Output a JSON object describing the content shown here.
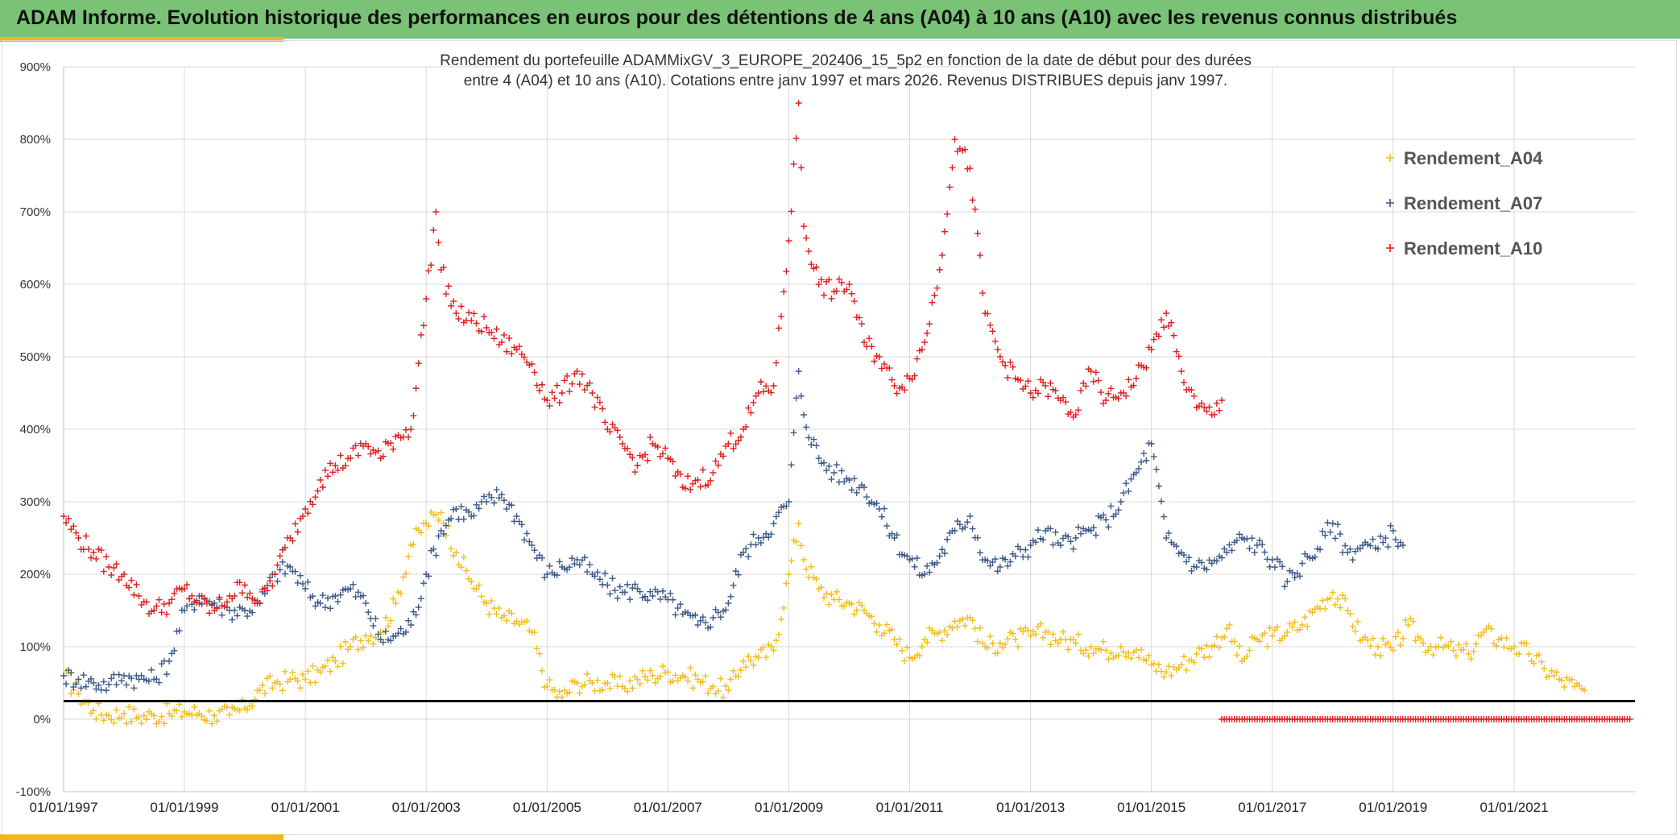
{
  "header": {
    "title": "ADAM Informe. Evolution historique des performances en euros pour des détentions de 4 ans (A04) à 10 ans (A10) avec les revenus connus distribués"
  },
  "colors": {
    "header_bg": "#7ac276",
    "accent": "#f2b61b",
    "A04": "#f2be1c",
    "A07": "#3d5a8a",
    "A10": "#e02020",
    "reference_line": "#000000"
  },
  "chart_data": {
    "type": "scatter",
    "title_lines": [
      "Rendement du portefeuille ADAMMixGV_3_EUROPE_202406_15_5p2  en fonction de la date de début pour des durées",
      "entre 4 (A04) et 10 ans (A10). Cotations entre janv 1997 et mars 2026. Revenus DISTRIBUES depuis janv 1997."
    ],
    "xlabel": "",
    "ylabel": "",
    "x_ticks": [
      "01/01/1997",
      "01/01/1999",
      "01/01/2001",
      "01/01/2003",
      "01/01/2005",
      "01/01/2007",
      "01/01/2009",
      "01/01/2011",
      "01/01/2013",
      "01/01/2015",
      "01/01/2017",
      "01/01/2019",
      "01/01/2021"
    ],
    "xlim": [
      "1997-01-01",
      "2023-01-01"
    ],
    "ylim": [
      -100,
      900
    ],
    "y_ticks": [
      "-100%",
      "0%",
      "100%",
      "200%",
      "300%",
      "400%",
      "500%",
      "600%",
      "700%",
      "800%",
      "900%"
    ],
    "y_tick_values": [
      -100,
      0,
      100,
      200,
      300,
      400,
      500,
      600,
      700,
      800,
      900
    ],
    "grid": true,
    "legend_position": "top-right",
    "marker": "+",
    "reference_line_y": 25,
    "series": [
      {
        "name": "Rendement_A04",
        "x": [
          "1997-01-01",
          "1997-04-01",
          "1997-07-01",
          "1997-10-01",
          "1998-01-01",
          "1998-04-01",
          "1998-07-01",
          "1998-10-01",
          "1999-01-01",
          "1999-04-01",
          "1999-07-01",
          "1999-10-01",
          "2000-01-01",
          "2000-04-01",
          "2000-07-01",
          "2000-10-01",
          "2001-01-01",
          "2001-04-01",
          "2001-07-01",
          "2001-10-01",
          "2002-01-01",
          "2002-04-01",
          "2002-07-01",
          "2002-10-01",
          "2003-01-01",
          "2003-04-01",
          "2003-07-01",
          "2003-10-01",
          "2004-01-01",
          "2004-04-01",
          "2004-07-01",
          "2004-10-01",
          "2005-01-01",
          "2005-04-01",
          "2005-07-01",
          "2005-10-01",
          "2006-01-01",
          "2006-04-01",
          "2006-07-01",
          "2006-10-01",
          "2007-01-01",
          "2007-04-01",
          "2007-07-01",
          "2007-10-01",
          "2008-01-01",
          "2008-04-01",
          "2008-07-01",
          "2008-10-01",
          "2009-01-01",
          "2009-03-01",
          "2009-04-01",
          "2009-07-01",
          "2009-10-01",
          "2010-01-01",
          "2010-04-01",
          "2010-07-01",
          "2010-10-01",
          "2011-01-01",
          "2011-04-01",
          "2011-07-01",
          "2011-10-01",
          "2012-01-01",
          "2012-04-01",
          "2012-07-01",
          "2012-10-01",
          "2013-01-01",
          "2013-04-01",
          "2013-07-01",
          "2013-10-01",
          "2014-01-01",
          "2014-04-01",
          "2014-07-01",
          "2014-10-01",
          "2015-01-01",
          "2015-04-01",
          "2015-07-01",
          "2015-10-01",
          "2016-01-01",
          "2016-04-01",
          "2016-07-01",
          "2016-10-01",
          "2017-01-01",
          "2017-04-01",
          "2017-07-01",
          "2017-10-01",
          "2018-01-01",
          "2018-04-01",
          "2018-07-01",
          "2018-10-01",
          "2019-01-01",
          "2019-04-01",
          "2019-07-01",
          "2019-10-01",
          "2020-01-01",
          "2020-04-01",
          "2020-07-01",
          "2020-10-01",
          "2021-01-01",
          "2021-04-01",
          "2021-07-01",
          "2021-10-01",
          "2022-01-01",
          "2022-03-01"
        ],
        "values": [
          60,
          35,
          12,
          5,
          8,
          3,
          5,
          8,
          10,
          8,
          5,
          6,
          15,
          40,
          50,
          55,
          55,
          65,
          80,
          100,
          115,
          120,
          160,
          240,
          270,
          285,
          230,
          190,
          160,
          140,
          135,
          120,
          45,
          30,
          50,
          50,
          50,
          45,
          55,
          60,
          65,
          60,
          55,
          45,
          40,
          80,
          85,
          95,
          200,
          270,
          220,
          180,
          165,
          160,
          150,
          130,
          110,
          85,
          110,
          120,
          135,
          140,
          100,
          105,
          110,
          115,
          120,
          110,
          105,
          100,
          95,
          100,
          95,
          75,
          65,
          75,
          90,
          100,
          125,
          80,
          110,
          115,
          120,
          130,
          155,
          175,
          150,
          110,
          100,
          95,
          130,
          105,
          100,
          95,
          90,
          120,
          110,
          100,
          90,
          70,
          55,
          45,
          40
        ]
      },
      {
        "name": "Rendement_A07",
        "x": [
          "1997-01-01",
          "1997-04-01",
          "1997-07-01",
          "1997-10-01",
          "1998-01-01",
          "1998-04-01",
          "1998-07-01",
          "1998-10-01",
          "1999-01-01",
          "1999-04-01",
          "1999-07-01",
          "1999-10-01",
          "2000-01-01",
          "2000-04-01",
          "2000-07-01",
          "2000-10-01",
          "2001-01-01",
          "2001-04-01",
          "2001-07-01",
          "2001-10-01",
          "2002-01-01",
          "2002-04-01",
          "2002-07-01",
          "2002-10-01",
          "2003-01-01",
          "2003-04-01",
          "2003-07-01",
          "2003-10-01",
          "2004-01-01",
          "2004-04-01",
          "2004-07-01",
          "2004-10-01",
          "2005-01-01",
          "2005-04-01",
          "2005-07-01",
          "2005-10-01",
          "2006-01-01",
          "2006-04-01",
          "2006-07-01",
          "2006-10-01",
          "2007-01-01",
          "2007-04-01",
          "2007-07-01",
          "2007-10-01",
          "2008-01-01",
          "2008-04-01",
          "2008-07-01",
          "2008-10-01",
          "2009-01-01",
          "2009-03-01",
          "2009-04-01",
          "2009-07-01",
          "2009-10-01",
          "2010-01-01",
          "2010-04-01",
          "2010-07-01",
          "2010-10-01",
          "2011-01-01",
          "2011-04-01",
          "2011-07-01",
          "2011-10-01",
          "2012-01-01",
          "2012-04-01",
          "2012-07-01",
          "2012-10-01",
          "2013-01-01",
          "2013-04-01",
          "2013-07-01",
          "2013-10-01",
          "2014-01-01",
          "2014-04-01",
          "2014-07-01",
          "2014-10-01",
          "2015-01-01",
          "2015-04-01",
          "2015-07-01",
          "2015-10-01",
          "2016-01-01",
          "2016-04-01",
          "2016-07-01",
          "2016-10-01",
          "2017-01-01",
          "2017-04-01",
          "2017-07-01",
          "2017-10-01",
          "2018-01-01",
          "2018-04-01",
          "2018-07-01",
          "2018-10-01",
          "2019-01-01",
          "2019-03-01"
        ],
        "values": [
          60,
          55,
          50,
          48,
          60,
          55,
          55,
          80,
          150,
          170,
          160,
          150,
          150,
          160,
          200,
          210,
          180,
          160,
          170,
          180,
          160,
          110,
          115,
          130,
          200,
          260,
          290,
          280,
          300,
          310,
          280,
          240,
          200,
          210,
          220,
          200,
          185,
          175,
          180,
          170,
          165,
          145,
          130,
          140,
          160,
          230,
          250,
          270,
          300,
          480,
          420,
          360,
          340,
          330,
          320,
          290,
          250,
          220,
          200,
          225,
          260,
          280,
          220,
          210,
          225,
          240,
          260,
          240,
          250,
          260,
          275,
          300,
          340,
          380,
          250,
          230,
          210,
          215,
          230,
          250,
          240,
          220,
          190,
          215,
          235,
          270,
          230,
          240,
          235,
          260,
          240
        ]
      },
      {
        "name": "Rendement_A10",
        "x": [
          "1997-01-01",
          "1997-04-01",
          "1997-07-01",
          "1997-10-01",
          "1998-01-01",
          "1998-04-01",
          "1998-07-01",
          "1998-10-01",
          "1999-01-01",
          "1999-04-01",
          "1999-07-01",
          "1999-10-01",
          "2000-01-01",
          "2000-04-01",
          "2000-07-01",
          "2000-10-01",
          "2001-01-01",
          "2001-04-01",
          "2001-07-01",
          "2001-10-01",
          "2002-01-01",
          "2002-04-01",
          "2002-07-01",
          "2002-10-01",
          "2003-01-01",
          "2003-03-01",
          "2003-04-01",
          "2003-07-01",
          "2003-10-01",
          "2004-01-01",
          "2004-04-01",
          "2004-07-01",
          "2004-10-01",
          "2005-01-01",
          "2005-04-01",
          "2005-07-01",
          "2005-10-01",
          "2006-01-01",
          "2006-04-01",
          "2006-07-01",
          "2006-10-01",
          "2007-01-01",
          "2007-04-01",
          "2007-07-01",
          "2007-10-01",
          "2008-01-01",
          "2008-04-01",
          "2008-07-01",
          "2008-10-01",
          "2009-01-01",
          "2009-03-01",
          "2009-04-01",
          "2009-07-01",
          "2009-10-01",
          "2010-01-01",
          "2010-04-01",
          "2010-07-01",
          "2010-10-01",
          "2011-01-01",
          "2011-04-01",
          "2011-07-01",
          "2011-10-01",
          "2012-01-01",
          "2012-04-01",
          "2012-07-01",
          "2012-10-01",
          "2013-01-01",
          "2013-04-01",
          "2013-07-01",
          "2013-10-01",
          "2014-01-01",
          "2014-04-01",
          "2014-07-01",
          "2014-10-01",
          "2015-01-01",
          "2015-04-01",
          "2015-07-01",
          "2015-10-01",
          "2016-01-01",
          "2016-03-01"
        ],
        "values": [
          280,
          250,
          230,
          210,
          200,
          170,
          150,
          160,
          180,
          160,
          150,
          170,
          185,
          160,
          200,
          250,
          290,
          330,
          350,
          360,
          380,
          360,
          390,
          400,
          580,
          700,
          620,
          560,
          550,
          540,
          520,
          510,
          490,
          440,
          450,
          480,
          450,
          400,
          380,
          350,
          380,
          360,
          320,
          330,
          340,
          380,
          400,
          450,
          460,
          660,
          850,
          680,
          600,
          590,
          600,
          520,
          500,
          460,
          470,
          520,
          620,
          800,
          760,
          560,
          500,
          470,
          450,
          460,
          440,
          420,
          480,
          440,
          450,
          470,
          510,
          560,
          480,
          430,
          420,
          440
        ]
      },
      {
        "name": "",
        "x": [
          "2016-03-01",
          "2016-06-01",
          "2016-09-01",
          "2016-12-01",
          "2017-03-01",
          "2017-06-01",
          "2017-09-01",
          "2017-12-01",
          "2018-03-01",
          "2018-06-01",
          "2018-09-01",
          "2018-12-01",
          "2019-03-01",
          "2019-06-01",
          "2019-09-01",
          "2019-12-01",
          "2020-03-01",
          "2020-06-01",
          "2020-09-01",
          "2020-12-01",
          "2021-03-01",
          "2021-06-01",
          "2021-09-01",
          "2021-12-01",
          "2022-03-01",
          "2022-06-01",
          "2022-09-01",
          "2022-12-01"
        ],
        "values": [
          0,
          0,
          0,
          0,
          0,
          0,
          0,
          0,
          0,
          0,
          0,
          0,
          0,
          0,
          0,
          0,
          0,
          0,
          0,
          0,
          0,
          0,
          0,
          0,
          0,
          0,
          0,
          0
        ]
      }
    ]
  }
}
